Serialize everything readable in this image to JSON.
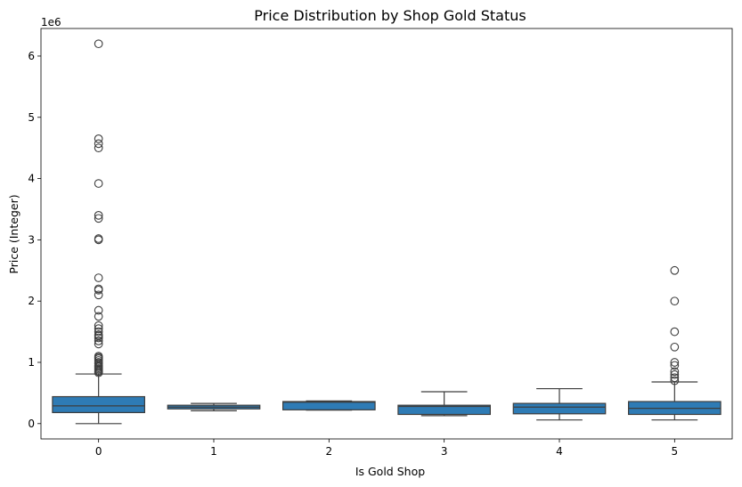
{
  "chart_data": {
    "type": "box",
    "title": "Price Distribution by Shop Gold Status",
    "xlabel": "Is Gold Shop",
    "ylabel": "Price (Integer)",
    "y_offset_label": "1e6",
    "y_scale_factor": 1000000,
    "ylim": [
      -250000,
      6450000
    ],
    "yticks": [
      0,
      1000000,
      2000000,
      3000000,
      4000000,
      5000000,
      6000000
    ],
    "ytick_labels": [
      "0",
      "1",
      "2",
      "3",
      "4",
      "5",
      "6"
    ],
    "categories": [
      "0",
      "1",
      "2",
      "3",
      "4",
      "5"
    ],
    "grid": false,
    "legend": "none",
    "box_color": "#2e7bb5",
    "line_color": "#3d3d3d",
    "boxes": [
      {
        "category": "0",
        "whisker_low": 0,
        "q1": 180000,
        "median": 290000,
        "q3": 440000,
        "whisker_high": 810000,
        "outliers": [
          830000,
          850000,
          870000,
          890000,
          910000,
          930000,
          950000,
          980000,
          1000000,
          1030000,
          1060000,
          1080000,
          1100000,
          1300000,
          1350000,
          1400000,
          1430000,
          1450000,
          1500000,
          1550000,
          1600000,
          1750000,
          1850000,
          2100000,
          2180000,
          2200000,
          2380000,
          3000000,
          3020000,
          3350000,
          3400000,
          3920000,
          4500000,
          4570000,
          4650000,
          6200000
        ]
      },
      {
        "category": "1",
        "whisker_low": 210000,
        "q1": 240000,
        "median": 270000,
        "q3": 300000,
        "whisker_high": 330000,
        "outliers": []
      },
      {
        "category": "2",
        "whisker_low": 220000,
        "q1": 225000,
        "median": 350000,
        "q3": 360000,
        "whisker_high": 370000,
        "outliers": []
      },
      {
        "category": "3",
        "whisker_low": 130000,
        "q1": 150000,
        "median": 280000,
        "q3": 300000,
        "whisker_high": 520000,
        "outliers": []
      },
      {
        "category": "4",
        "whisker_low": 60000,
        "q1": 160000,
        "median": 270000,
        "q3": 330000,
        "whisker_high": 570000,
        "outliers": []
      },
      {
        "category": "5",
        "whisker_low": 60000,
        "q1": 150000,
        "median": 250000,
        "q3": 360000,
        "whisker_high": 680000,
        "outliers": [
          700000,
          750000,
          800000,
          850000,
          950000,
          1000000,
          1250000,
          1500000,
          2000000,
          2500000
        ]
      }
    ]
  }
}
